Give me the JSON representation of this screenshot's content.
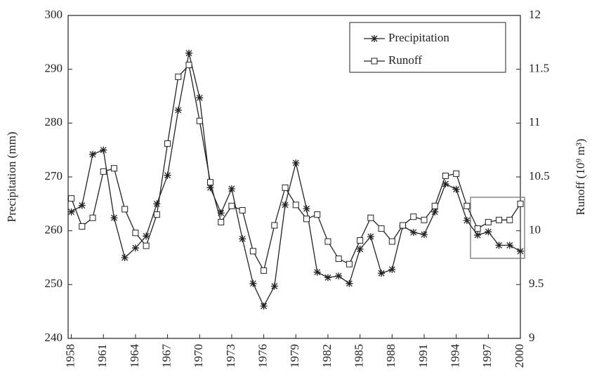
{
  "chart_data": {
    "type": "line",
    "x": [
      1958,
      1959,
      1960,
      1961,
      1962,
      1963,
      1964,
      1965,
      1966,
      1967,
      1968,
      1969,
      1970,
      1971,
      1972,
      1973,
      1974,
      1975,
      1976,
      1977,
      1978,
      1979,
      1980,
      1981,
      1982,
      1983,
      1984,
      1985,
      1986,
      1987,
      1988,
      1989,
      1990,
      1991,
      1992,
      1993,
      1994,
      1995,
      1996,
      1997,
      1998,
      1999,
      2000
    ],
    "series": [
      {
        "name": "Precipitation",
        "color": "#222222",
        "marker": "asterisk",
        "values": [
          263.5,
          264.7,
          274.2,
          275.0,
          262.4,
          255.0,
          256.8,
          259.0,
          265.0,
          270.3,
          282.4,
          293.0,
          284.7,
          268.0,
          263.3,
          267.8,
          258.5,
          250.2,
          246.0,
          249.7,
          264.8,
          272.6,
          264.1,
          252.3,
          251.3,
          251.6,
          250.2,
          256.6,
          258.9,
          252.1,
          252.8,
          260.9,
          259.7,
          259.3,
          263.5,
          268.7,
          267.7,
          261.9,
          259.2,
          259.8,
          257.3,
          257.3,
          256.2
        ]
      },
      {
        "name": "Runoff",
        "color": "#222222",
        "marker": "square",
        "axis": "y2",
        "values": [
          10.3,
          10.04,
          10.12,
          10.55,
          10.58,
          10.2,
          9.98,
          9.86,
          10.15,
          10.81,
          11.43,
          11.54,
          11.02,
          10.45,
          10.08,
          10.23,
          10.19,
          9.81,
          9.63,
          10.05,
          10.4,
          10.24,
          10.11,
          10.15,
          9.9,
          9.74,
          9.69,
          9.91,
          10.12,
          10.02,
          9.9,
          10.05,
          10.13,
          10.1,
          10.23,
          10.51,
          10.53,
          10.23,
          10.02,
          10.08,
          10.1,
          10.1,
          10.25
        ]
      }
    ],
    "ylabel": "Precipitation (mm)",
    "y2label": "Runoff (10⁹ m³)",
    "xlim": [
      1957.7,
      2000
    ],
    "xticks": [
      1958,
      1961,
      1964,
      1967,
      1970,
      1973,
      1976,
      1979,
      1982,
      1985,
      1988,
      1991,
      1994,
      1997,
      2000
    ],
    "ylim": [
      240,
      300
    ],
    "yticks": [
      240,
      250,
      260,
      270,
      280,
      290,
      300
    ],
    "y2lim": [
      9,
      12
    ],
    "y2ticks": [
      9,
      9.5,
      10,
      10.5,
      11,
      11.5,
      12
    ],
    "legend": "upper-right",
    "grid": false
  }
}
